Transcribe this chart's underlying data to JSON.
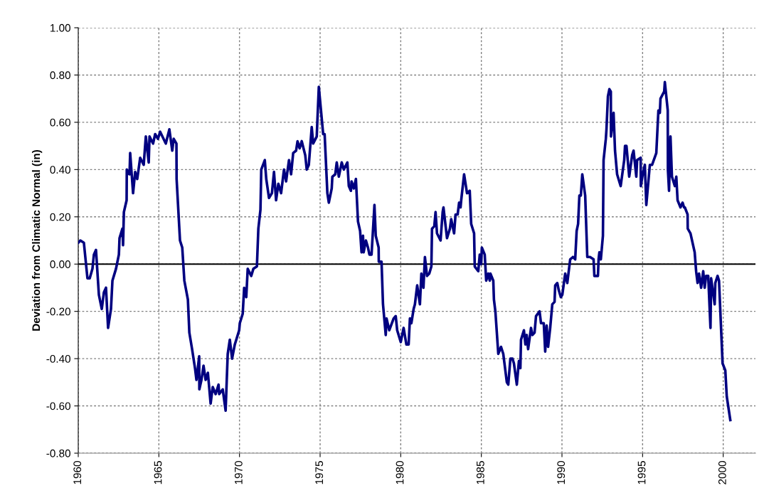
{
  "chart_data": {
    "type": "line",
    "ylabel": "Deviation from Climatic Normal (in)",
    "xlim": [
      1960,
      2002
    ],
    "xticks": [
      1960,
      1965,
      1970,
      1975,
      1980,
      1985,
      1990,
      1995,
      2000
    ],
    "ylim": [
      -0.8,
      1.0
    ],
    "yticks": [
      {
        "value": -0.8,
        "label": "-0.80"
      },
      {
        "value": -0.6,
        "label": "-0.60"
      },
      {
        "value": -0.4,
        "label": "-0.40"
      },
      {
        "value": -0.2,
        "label": "-0.20"
      },
      {
        "value": 0,
        "label": "0.00"
      },
      {
        "value": 0.2,
        "label": "0.20"
      },
      {
        "value": 0.4,
        "label": "0.40"
      },
      {
        "value": 0.6,
        "label": "0.60"
      },
      {
        "value": 0.8,
        "label": "0.80"
      },
      {
        "value": 1.0,
        "label": "1.00"
      }
    ],
    "grid": true,
    "marker": "none",
    "line_style": "solid",
    "ref_lines": [
      {
        "axis": "y",
        "value": 0,
        "label": null,
        "color": "#000000"
      }
    ],
    "series": [
      {
        "color": "#000080",
        "x": [
          1960.0,
          1960.13,
          1960.35,
          1960.57,
          1960.71,
          1960.88,
          1960.97,
          1961.1,
          1961.28,
          1961.46,
          1961.59,
          1961.72,
          1961.85,
          1962.03,
          1962.12,
          1962.34,
          1962.52,
          1962.56,
          1962.74,
          1962.78,
          1962.83,
          1963.0,
          1963.01,
          1963.18,
          1963.22,
          1963.4,
          1963.53,
          1963.66,
          1963.84,
          1964.06,
          1964.19,
          1964.37,
          1964.42,
          1964.64,
          1964.77,
          1964.94,
          1965.08,
          1965.43,
          1965.65,
          1965.83,
          1965.92,
          1966.09,
          1966.1,
          1966.31,
          1966.45,
          1966.58,
          1966.8,
          1966.89,
          1967.06,
          1967.24,
          1967.33,
          1967.5,
          1967.51,
          1967.64,
          1967.77,
          1967.9,
          1968.04,
          1968.21,
          1968.34,
          1968.52,
          1968.7,
          1968.74,
          1968.96,
          1969.14,
          1969.27,
          1969.4,
          1969.54,
          1969.71,
          1969.98,
          1970.02,
          1970.2,
          1970.29,
          1970.42,
          1970.51,
          1970.73,
          1970.86,
          1971.08,
          1971.17,
          1971.3,
          1971.35,
          1971.57,
          1971.66,
          1971.83,
          1972.01,
          1972.14,
          1972.27,
          1972.41,
          1972.58,
          1972.76,
          1972.89,
          1973.07,
          1973.2,
          1973.33,
          1973.51,
          1973.6,
          1973.73,
          1973.86,
          1974.08,
          1974.17,
          1974.3,
          1974.48,
          1974.57,
          1974.79,
          1974.92,
          1975.19,
          1975.28,
          1975.45,
          1975.54,
          1975.72,
          1975.76,
          1975.94,
          1976.03,
          1976.16,
          1976.34,
          1976.47,
          1976.69,
          1976.78,
          1976.91,
          1976.95,
          1977.09,
          1977.22,
          1977.35,
          1977.48,
          1977.57,
          1977.66,
          1977.7,
          1977.84,
          1977.97,
          1978.06,
          1978.19,
          1978.37,
          1978.45,
          1978.63,
          1978.64,
          1978.81,
          1978.9,
          1979.07,
          1979.12,
          1979.29,
          1979.56,
          1979.69,
          1979.78,
          1980.0,
          1980.18,
          1980.35,
          1980.49,
          1980.57,
          1980.66,
          1980.8,
          1980.88,
          1981.02,
          1981.19,
          1981.28,
          1981.41,
          1981.5,
          1981.63,
          1981.77,
          1981.9,
          1981.94,
          1982.08,
          1982.16,
          1982.25,
          1982.47,
          1982.6,
          1982.65,
          1982.87,
          1983.05,
          1983.13,
          1983.31,
          1983.4,
          1983.53,
          1983.62,
          1983.71,
          1983.75,
          1983.93,
          1984.11,
          1984.28,
          1984.37,
          1984.55,
          1984.59,
          1984.81,
          1984.9,
          1984.99,
          1985.03,
          1985.21,
          1985.3,
          1985.43,
          1985.52,
          1985.56,
          1985.74,
          1985.78,
          1985.87,
          1986.05,
          1986.22,
          1986.36,
          1986.58,
          1986.67,
          1986.8,
          1986.93,
          1987.02,
          1987.2,
          1987.33,
          1987.42,
          1987.46,
          1987.64,
          1987.73,
          1987.81,
          1987.9,
          1988.08,
          1988.17,
          1988.3,
          1988.39,
          1988.61,
          1988.7,
          1988.87,
          1988.96,
          1989.05,
          1989.14,
          1989.27,
          1989.4,
          1989.54,
          1989.58,
          1989.71,
          1989.8,
          1989.93,
          1990.02,
          1990.2,
          1990.33,
          1990.51,
          1990.68,
          1990.82,
          1990.91,
          1991.0,
          1991.08,
          1991.17,
          1991.26,
          1991.44,
          1991.57,
          1991.74,
          1991.96,
          1992.01,
          1992.23,
          1992.27,
          1992.32,
          1992.41,
          1992.54,
          1992.58,
          1992.72,
          1992.76,
          1992.85,
          1992.94,
          1993.03,
          1993.04,
          1993.2,
          1993.29,
          1993.42,
          1993.64,
          1993.86,
          1993.91,
          1994.0,
          1994.17,
          1994.35,
          1994.44,
          1994.61,
          1994.66,
          1994.88,
          1994.89,
          1995.01,
          1995.14,
          1995.23,
          1995.45,
          1995.59,
          1995.85,
          1995.98,
          1996.07,
          1996.11,
          1996.34,
          1996.38,
          1996.56,
          1996.57,
          1996.64,
          1996.73,
          1996.82,
          1997.0,
          1997.09,
          1997.17,
          1997.35,
          1997.48,
          1997.57,
          1997.62,
          1997.79,
          1997.8,
          1997.97,
          1998.23,
          1998.32,
          1998.41,
          1998.5,
          1998.63,
          1998.76,
          1998.85,
          1998.94,
          1999.07,
          1999.21,
          1999.25,
          1999.47,
          1999.51,
          1999.65,
          1999.74,
          1999.96,
          2000.13,
          2000.22,
          2000.44
        ],
        "values": [
          0.09,
          0.1,
          0.09,
          -0.06,
          -0.06,
          -0.02,
          0.04,
          0.06,
          -0.13,
          -0.19,
          -0.12,
          -0.1,
          -0.27,
          -0.19,
          -0.07,
          -0.02,
          0.04,
          0.11,
          0.15,
          0.08,
          0.22,
          0.27,
          0.4,
          0.38,
          0.47,
          0.3,
          0.39,
          0.36,
          0.45,
          0.42,
          0.54,
          0.43,
          0.54,
          0.51,
          0.55,
          0.53,
          0.56,
          0.51,
          0.57,
          0.48,
          0.53,
          0.51,
          0.36,
          0.1,
          0.07,
          -0.07,
          -0.15,
          -0.29,
          -0.36,
          -0.44,
          -0.49,
          -0.39,
          -0.53,
          -0.49,
          -0.43,
          -0.49,
          -0.46,
          -0.59,
          -0.52,
          -0.55,
          -0.51,
          -0.55,
          -0.53,
          -0.62,
          -0.38,
          -0.32,
          -0.4,
          -0.34,
          -0.28,
          -0.25,
          -0.21,
          -0.1,
          -0.14,
          -0.02,
          -0.05,
          -0.02,
          -0.01,
          0.15,
          0.23,
          0.4,
          0.44,
          0.36,
          0.28,
          0.3,
          0.39,
          0.27,
          0.34,
          0.3,
          0.4,
          0.35,
          0.44,
          0.38,
          0.47,
          0.48,
          0.52,
          0.49,
          0.52,
          0.46,
          0.4,
          0.42,
          0.58,
          0.51,
          0.54,
          0.75,
          0.55,
          0.55,
          0.3,
          0.26,
          0.32,
          0.37,
          0.38,
          0.43,
          0.37,
          0.43,
          0.4,
          0.43,
          0.33,
          0.31,
          0.35,
          0.32,
          0.36,
          0.18,
          0.14,
          0.05,
          0.12,
          0.05,
          0.1,
          0.07,
          0.04,
          0.04,
          0.25,
          0.12,
          0.07,
          0.01,
          0.01,
          -0.17,
          -0.3,
          -0.23,
          -0.28,
          -0.23,
          -0.22,
          -0.28,
          -0.33,
          -0.27,
          -0.34,
          -0.34,
          -0.23,
          -0.25,
          -0.19,
          -0.17,
          -0.09,
          -0.17,
          -0.04,
          -0.1,
          0.03,
          -0.05,
          -0.04,
          -0.01,
          0.15,
          0.16,
          0.22,
          0.13,
          0.1,
          0.22,
          0.24,
          0.11,
          0.15,
          0.19,
          0.13,
          0.21,
          0.21,
          0.26,
          0.24,
          0.27,
          0.38,
          0.3,
          0.31,
          0.17,
          0.13,
          -0.01,
          -0.03,
          0.04,
          0.0,
          0.07,
          0.04,
          -0.07,
          -0.04,
          -0.07,
          -0.04,
          -0.07,
          -0.15,
          -0.2,
          -0.38,
          -0.35,
          -0.38,
          -0.5,
          -0.51,
          -0.4,
          -0.4,
          -0.42,
          -0.51,
          -0.41,
          -0.44,
          -0.32,
          -0.28,
          -0.34,
          -0.3,
          -0.36,
          -0.27,
          -0.3,
          -0.29,
          -0.22,
          -0.2,
          -0.25,
          -0.25,
          -0.37,
          -0.26,
          -0.35,
          -0.27,
          -0.17,
          -0.16,
          -0.09,
          -0.08,
          -0.11,
          -0.14,
          -0.13,
          -0.04,
          -0.08,
          0.02,
          0.03,
          0.02,
          0.14,
          0.17,
          0.29,
          0.29,
          0.38,
          0.29,
          0.03,
          0.03,
          0.02,
          -0.05,
          -0.05,
          0.02,
          0.05,
          0.02,
          0.12,
          0.44,
          0.53,
          0.57,
          0.71,
          0.74,
          0.73,
          0.54,
          0.64,
          0.48,
          0.38,
          0.33,
          0.44,
          0.5,
          0.5,
          0.37,
          0.46,
          0.48,
          0.37,
          0.44,
          0.45,
          0.33,
          0.38,
          0.42,
          0.25,
          0.42,
          0.42,
          0.47,
          0.65,
          0.64,
          0.7,
          0.73,
          0.77,
          0.65,
          0.4,
          0.31,
          0.54,
          0.37,
          0.33,
          0.37,
          0.27,
          0.24,
          0.26,
          0.24,
          0.24,
          0.21,
          0.15,
          0.13,
          0.05,
          -0.03,
          -0.08,
          -0.04,
          -0.1,
          -0.03,
          -0.1,
          -0.05,
          -0.05,
          -0.27,
          -0.06,
          -0.17,
          -0.08,
          -0.05,
          -0.07,
          -0.42,
          -0.45,
          -0.56,
          -0.66
        ]
      }
    ]
  }
}
